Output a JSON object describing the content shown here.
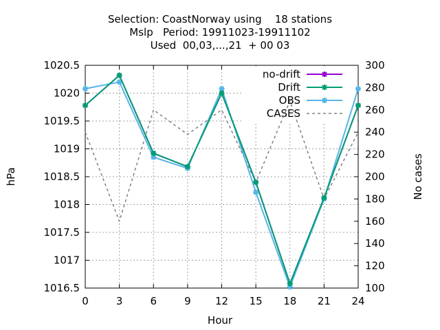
{
  "chart_data": {
    "type": "line",
    "title": [
      "Selection: CoastNorway using    18 stations",
      "Mslp   Period: 19911023-19911102",
      "Used  00,03,...,21  + 00 03"
    ],
    "xlabel": "Hour",
    "ylabel": "hPa",
    "y2label": "No cases",
    "x": [
      0,
      3,
      6,
      9,
      12,
      15,
      18,
      21,
      24
    ],
    "xticks": [
      "0",
      "3",
      "6",
      "9",
      "12",
      "15",
      "18",
      "21",
      "24"
    ],
    "xlim": [
      0,
      24
    ],
    "ylim": [
      1016.5,
      1020.5
    ],
    "yticks": [
      "1016.5",
      "1017",
      "1017.5",
      "1018",
      "1018.5",
      "1019",
      "1019.5",
      "1020",
      "1020.5"
    ],
    "y2lim": [
      100,
      300
    ],
    "y2ticks": [
      "100",
      "120",
      "140",
      "160",
      "180",
      "200",
      "220",
      "240",
      "260",
      "280",
      "300"
    ],
    "grid": true,
    "legend_position": "top-right",
    "series": [
      {
        "name": "no-drift",
        "axis": "y",
        "color": "#9400d3",
        "values": [
          1019.78,
          1020.32,
          1018.92,
          1018.68,
          1020.0,
          1018.4,
          1016.58,
          1018.12,
          1019.78
        ]
      },
      {
        "name": "Drift",
        "axis": "y",
        "color": "#009e73",
        "values": [
          1019.78,
          1020.32,
          1018.92,
          1018.68,
          1020.0,
          1018.4,
          1016.58,
          1018.12,
          1019.78
        ]
      },
      {
        "name": "OBS",
        "axis": "y",
        "color": "#56b4e9",
        "values": [
          1020.08,
          1020.2,
          1018.85,
          1018.65,
          1020.08,
          1018.22,
          1016.52,
          1018.1,
          1020.08
        ]
      },
      {
        "name": "CASES",
        "axis": "y2",
        "color": "#808080",
        "dashed": true,
        "values": [
          240,
          160,
          260,
          238,
          260,
          195,
          268,
          180,
          240
        ]
      }
    ]
  }
}
